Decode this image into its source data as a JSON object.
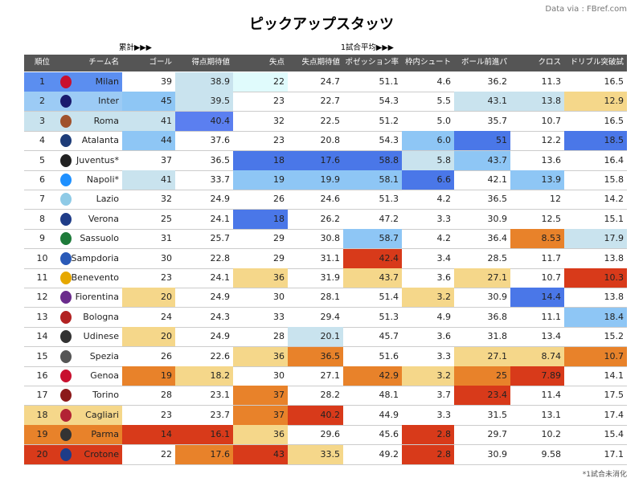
{
  "title": "ピックアップスタッツ",
  "source": "Data via : FBref.com",
  "section_labels": [
    "累計▶▶▶",
    "1試合平均▶▶▶"
  ],
  "columns": [
    "順位",
    "チーム名",
    "ゴール",
    "得点期待値",
    "失点",
    "失点期待値",
    "ポゼッション率",
    "枠内シュート",
    "ボール前進パス",
    "クロス",
    "ドリブル突破試行"
  ],
  "rows": [
    {
      "cells": [
        1,
        "Milan",
        39,
        38.9,
        22,
        24.7,
        51.1,
        4.6,
        36.2,
        11.3,
        16.5
      ],
      "colors": [
        "#5b8ef0",
        "#5b8ef0",
        null,
        "#c9e3ee",
        "#e0fbfc",
        null,
        null,
        null,
        null,
        null,
        null
      ]
    },
    {
      "cells": [
        2,
        "Inter",
        45,
        39.5,
        23,
        22.7,
        54.3,
        5.5,
        43.1,
        13.8,
        12.9
      ],
      "colors": [
        "#9ccbf5",
        "#9ccbf5",
        "#8ec6f5",
        "#c9e3ee",
        null,
        null,
        null,
        null,
        "#c9e3ee",
        "#c9e3ee",
        "#f5d78a"
      ]
    },
    {
      "cells": [
        3,
        "Roma",
        41,
        40.4,
        32,
        22.5,
        51.2,
        "5.0",
        35.7,
        10.7,
        16.5
      ],
      "colors": [
        "#c9e3ee",
        "#c9e3ee",
        "#c9e3ee",
        "#5b7ff0",
        null,
        null,
        null,
        null,
        null,
        null,
        null
      ]
    },
    {
      "cells": [
        4,
        "Atalanta",
        44,
        37.6,
        23,
        20.8,
        54.3,
        "6.0",
        51,
        12.2,
        18.5
      ],
      "colors": [
        null,
        null,
        "#8ec6f5",
        null,
        null,
        null,
        null,
        "#8ec6f5",
        "#4a77e8",
        null,
        "#4a77e8"
      ]
    },
    {
      "cells": [
        5,
        "Juventus*",
        37,
        36.5,
        18,
        17.6,
        58.8,
        5.8,
        43.7,
        13.6,
        16.4
      ],
      "colors": [
        null,
        null,
        null,
        null,
        "#4a77e8",
        "#4a77e8",
        "#4a77e8",
        "#c9e3ee",
        "#8ec6f5",
        null,
        null
      ]
    },
    {
      "cells": [
        6,
        "Napoli*",
        41,
        33.7,
        19,
        19.9,
        58.1,
        6.6,
        42.1,
        13.9,
        15.8
      ],
      "colors": [
        null,
        null,
        "#c9e3ee",
        null,
        "#8ec6f5",
        "#8ec6f5",
        "#8ec6f5",
        "#4a77e8",
        null,
        "#8ec6f5",
        null
      ]
    },
    {
      "cells": [
        7,
        "Lazio",
        32,
        24.9,
        26,
        24.6,
        51.3,
        4.2,
        36.5,
        12,
        14.2
      ],
      "colors": [
        null,
        null,
        null,
        null,
        null,
        null,
        null,
        null,
        null,
        null,
        null
      ]
    },
    {
      "cells": [
        8,
        "Verona",
        25,
        24.1,
        18,
        26.2,
        47.2,
        3.3,
        30.9,
        12.5,
        15.1
      ],
      "colors": [
        null,
        null,
        null,
        null,
        "#4a77e8",
        null,
        null,
        null,
        null,
        null,
        null
      ]
    },
    {
      "cells": [
        9,
        "Sassuolo",
        31,
        25.7,
        29,
        30.8,
        58.7,
        4.2,
        36.4,
        8.53,
        17.9
      ],
      "colors": [
        null,
        null,
        null,
        null,
        null,
        null,
        "#8ec6f5",
        null,
        null,
        "#e8822a",
        "#c9e3ee"
      ]
    },
    {
      "cells": [
        10,
        "Sampdoria",
        30,
        22.8,
        29,
        31.1,
        42.4,
        3.4,
        28.5,
        11.7,
        13.8
      ],
      "colors": [
        null,
        null,
        null,
        null,
        null,
        null,
        "#d83a1a",
        null,
        null,
        null,
        null
      ]
    },
    {
      "cells": [
        11,
        "Benevento",
        23,
        24.1,
        36,
        31.9,
        43.7,
        3.6,
        27.1,
        10.7,
        10.3
      ],
      "colors": [
        null,
        null,
        null,
        null,
        "#f5d78a",
        null,
        "#f5d78a",
        null,
        "#f5d78a",
        null,
        "#d83a1a"
      ]
    },
    {
      "cells": [
        12,
        "Fiorentina",
        20,
        24.9,
        30,
        28.1,
        51.4,
        3.2,
        30.9,
        14.4,
        13.8
      ],
      "colors": [
        null,
        null,
        "#f5d78a",
        null,
        null,
        null,
        null,
        "#f5d78a",
        null,
        "#4a77e8",
        null
      ]
    },
    {
      "cells": [
        13,
        "Bologna",
        24,
        24.3,
        33,
        29.4,
        51.3,
        4.9,
        36.8,
        11.1,
        18.4
      ],
      "colors": [
        null,
        null,
        null,
        null,
        null,
        null,
        null,
        null,
        null,
        null,
        "#8ec6f5"
      ]
    },
    {
      "cells": [
        14,
        "Udinese",
        20,
        24.9,
        28,
        20.1,
        45.7,
        3.6,
        31.8,
        13.4,
        15.2
      ],
      "colors": [
        null,
        null,
        "#f5d78a",
        null,
        null,
        "#c9e3ee",
        null,
        null,
        null,
        null,
        null
      ]
    },
    {
      "cells": [
        15,
        "Spezia",
        26,
        22.6,
        36,
        36.5,
        51.6,
        3.3,
        27.1,
        8.74,
        10.7
      ],
      "colors": [
        null,
        null,
        null,
        null,
        "#f5d78a",
        "#e8822a",
        null,
        null,
        "#f5d78a",
        "#f5d78a",
        "#e8822a"
      ]
    },
    {
      "cells": [
        16,
        "Genoa",
        19,
        18.2,
        30,
        27.1,
        42.9,
        3.2,
        25,
        7.89,
        14.1
      ],
      "colors": [
        null,
        null,
        "#e8822a",
        "#f5d78a",
        null,
        null,
        "#e8822a",
        "#f5d78a",
        "#e8822a",
        "#d83a1a",
        null
      ]
    },
    {
      "cells": [
        17,
        "Torino",
        28,
        23.1,
        37,
        28.2,
        48.1,
        3.7,
        23.4,
        11.4,
        17.5
      ],
      "colors": [
        null,
        null,
        null,
        null,
        "#e8822a",
        null,
        null,
        null,
        "#d83a1a",
        null,
        null
      ]
    },
    {
      "cells": [
        18,
        "Cagliari",
        23,
        23.7,
        37,
        40.2,
        44.9,
        3.3,
        31.5,
        13.1,
        17.4
      ],
      "colors": [
        "#f5d78a",
        "#f5d78a",
        null,
        null,
        "#e8822a",
        "#d83a1a",
        null,
        null,
        null,
        null,
        null
      ]
    },
    {
      "cells": [
        19,
        "Parma",
        14,
        16.1,
        36,
        29.6,
        45.6,
        2.8,
        29.7,
        10.2,
        15.4
      ],
      "colors": [
        "#e8822a",
        "#e8822a",
        "#d83a1a",
        "#d83a1a",
        "#f5d78a",
        null,
        null,
        "#d83a1a",
        null,
        null,
        null
      ]
    },
    {
      "cells": [
        20,
        "Crotone",
        22,
        17.6,
        43,
        33.5,
        49.2,
        2.8,
        30.9,
        9.58,
        17.1
      ],
      "colors": [
        "#d83a1a",
        "#d83a1a",
        null,
        "#e8822a",
        "#d83a1a",
        "#f5d78a",
        null,
        "#d83a1a",
        null,
        null,
        null
      ]
    }
  ],
  "footnote": "*1試合未消化"
}
